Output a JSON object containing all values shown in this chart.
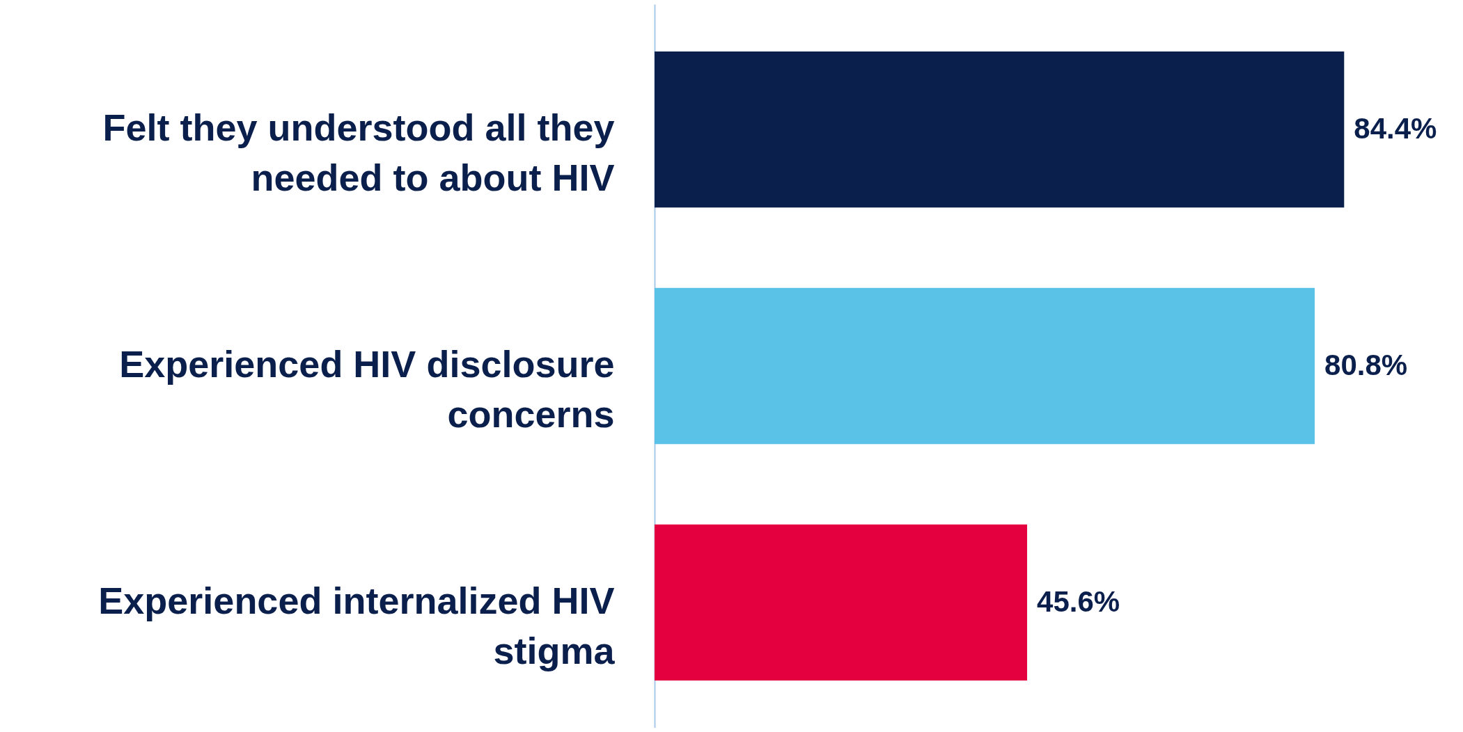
{
  "chart_data": {
    "type": "bar",
    "orientation": "horizontal",
    "categories": [
      "Felt they understood all they needed to about HIV",
      "Experienced HIV disclosure concerns",
      "Experienced internalized HIV stigma"
    ],
    "values": [
      84.4,
      80.8,
      45.6
    ],
    "colors": [
      "#0a1f4c",
      "#5bc2e7",
      "#e4003f"
    ],
    "value_labels": [
      "84.4%",
      "80.8%",
      "45.6%"
    ]
  }
}
